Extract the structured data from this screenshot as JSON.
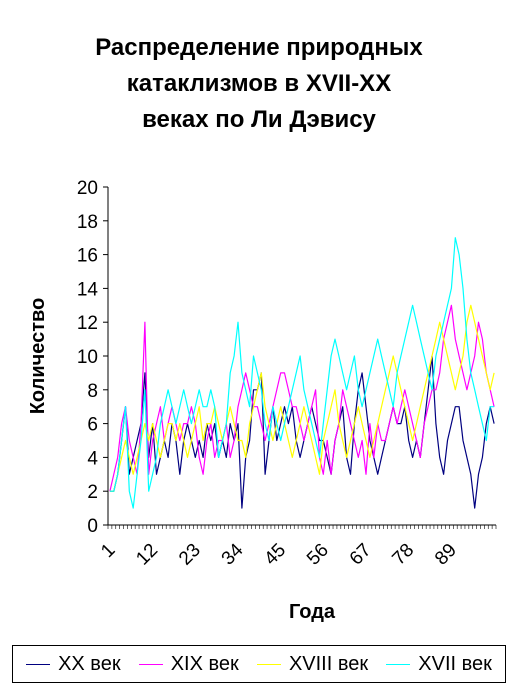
{
  "chart_data": {
    "type": "line",
    "title": "Распределение природных\nкатаклизмов в XVII-XX\nвеках по Ли Дэвису",
    "xlabel": "Года",
    "ylabel": "Количество",
    "ylim": [
      0,
      20
    ],
    "y_ticks": [
      "0",
      "2",
      "4",
      "6",
      "8",
      "10",
      "12",
      "14",
      "16",
      "18",
      "20"
    ],
    "x_count": 100,
    "x_tick_labels": [
      "1",
      "12",
      "23",
      "34",
      "45",
      "56",
      "67",
      "78",
      "89"
    ],
    "legend_position": "bottom",
    "grid": false,
    "series": [
      {
        "name": "XX век",
        "color": "#000080",
        "values": [
          2,
          2,
          3,
          5,
          7,
          3,
          4,
          5,
          6,
          9,
          4,
          6,
          3,
          4,
          5,
          4,
          6,
          5,
          3,
          5,
          6,
          5,
          4,
          5,
          4,
          6,
          5,
          6,
          4,
          5,
          4,
          6,
          5,
          6,
          1,
          4,
          5,
          8,
          8,
          9,
          3,
          5,
          7,
          5,
          6,
          7,
          6,
          7,
          5,
          4,
          5,
          6,
          7,
          6,
          5,
          5,
          4,
          3,
          5,
          6,
          7,
          4,
          3,
          6,
          8,
          9,
          7,
          5,
          4,
          3,
          4,
          5,
          6,
          7,
          6,
          6,
          7,
          5,
          4,
          5,
          4,
          6,
          8,
          10,
          6,
          4,
          3,
          5,
          6,
          7,
          7,
          5,
          4,
          3,
          1,
          3,
          4,
          6,
          7,
          6
        ]
      },
      {
        "name": "XIX век",
        "color": "#ff00ff",
        "values": [
          2,
          3,
          4,
          6,
          7,
          5,
          4,
          3,
          6,
          12,
          3,
          5,
          6,
          7,
          5,
          6,
          7,
          6,
          5,
          6,
          6,
          7,
          6,
          4,
          3,
          5,
          6,
          4,
          5,
          5,
          6,
          4,
          5,
          7,
          8,
          9,
          8,
          7,
          7,
          6,
          5,
          6,
          7,
          8,
          9,
          9,
          8,
          7,
          7,
          6,
          5,
          6,
          7,
          8,
          4,
          3,
          5,
          3,
          5,
          6,
          8,
          7,
          6,
          5,
          4,
          5,
          3,
          6,
          4,
          6,
          5,
          5,
          6,
          7,
          6,
          7,
          8,
          7,
          6,
          5,
          4,
          6,
          7,
          8,
          8,
          9,
          11,
          12,
          13,
          11,
          10,
          9,
          8,
          9,
          10,
          12,
          11,
          9,
          8,
          7
        ]
      },
      {
        "name": "XVIII век",
        "color": "#ffff00",
        "values": [
          2,
          2,
          3,
          4,
          5,
          4,
          3,
          4,
          5,
          6,
          5,
          6,
          5,
          4,
          5,
          6,
          6,
          5,
          6,
          5,
          4,
          5,
          6,
          7,
          5,
          6,
          6,
          7,
          6,
          5,
          6,
          7,
          6,
          5,
          5,
          4,
          6,
          7,
          8,
          9,
          7,
          6,
          5,
          6,
          7,
          6,
          5,
          4,
          5,
          6,
          7,
          6,
          5,
          4,
          3,
          5,
          6,
          7,
          8,
          6,
          5,
          4,
          5,
          6,
          7,
          6,
          5,
          4,
          5,
          6,
          7,
          8,
          9,
          10,
          9,
          8,
          7,
          6,
          5,
          6,
          7,
          8,
          9,
          10,
          11,
          12,
          11,
          10,
          9,
          8,
          9,
          10,
          12,
          13,
          12,
          11,
          10,
          9,
          8,
          9
        ]
      },
      {
        "name": "XVII век",
        "color": "#00ffff",
        "values": [
          2,
          2,
          3,
          5,
          7,
          2,
          1,
          3,
          5,
          8,
          2,
          3,
          4,
          6,
          7,
          8,
          7,
          6,
          7,
          8,
          7,
          6,
          7,
          8,
          7,
          7,
          8,
          7,
          4,
          5,
          6,
          9,
          10,
          12,
          9,
          8,
          7,
          10,
          9,
          8,
          6,
          5,
          7,
          6,
          5,
          6,
          7,
          8,
          9,
          10,
          8,
          7,
          6,
          5,
          4,
          6,
          8,
          10,
          11,
          10,
          9,
          8,
          9,
          10,
          8,
          7,
          8,
          9,
          10,
          11,
          10,
          9,
          8,
          7,
          9,
          10,
          11,
          12,
          13,
          12,
          11,
          10,
          9,
          8,
          10,
          11,
          12,
          13,
          14,
          17,
          16,
          14,
          11,
          9,
          8,
          7,
          6,
          5,
          7,
          7
        ]
      }
    ]
  }
}
